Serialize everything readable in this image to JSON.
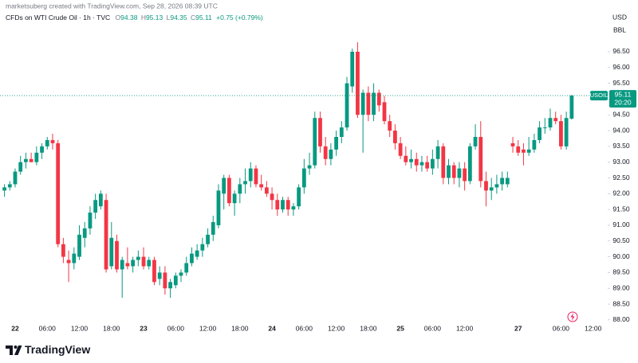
{
  "header": {
    "credit": "marketsuberg created with TradingView.com, Sep 28, 2026 08:39 UTC",
    "symbol": "CFDs on WTI Crude Oil · 1h · TVC",
    "ohlc_labels": [
      "O",
      "H",
      "L",
      "C"
    ],
    "change": "+0.75 (+0.79%)"
  },
  "footer": {
    "brand": "TradingView"
  },
  "chart_data": {
    "type": "candlestick",
    "symbol_label": "USOIL",
    "countdown": "20:20",
    "units": [
      "USD",
      "BBL"
    ],
    "up_color": "#089981",
    "down_color": "#f23645",
    "grid": false,
    "categories": [
      null,
      null,
      "22",
      null,
      null,
      null,
      null,
      null,
      "06:00",
      null,
      null,
      null,
      null,
      null,
      "12:00",
      null,
      null,
      null,
      null,
      null,
      "18:00",
      null,
      null,
      null,
      null,
      null,
      "23",
      null,
      null,
      null,
      null,
      null,
      "06:00",
      null,
      null,
      null,
      null,
      null,
      "12:00",
      null,
      null,
      null,
      null,
      null,
      "18:00",
      null,
      null,
      null,
      null,
      null,
      "24",
      null,
      null,
      null,
      null,
      null,
      "06:00",
      null,
      null,
      null,
      null,
      null,
      "12:00",
      null,
      null,
      null,
      null,
      null,
      "18:00",
      null,
      null,
      null,
      null,
      null,
      "25",
      null,
      null,
      null,
      null,
      null,
      "06:00",
      null,
      null,
      null,
      null,
      null,
      "12:00",
      null,
      null,
      null,
      null,
      null,
      null,
      null,
      null,
      null,
      "27",
      null,
      null,
      null,
      null,
      null,
      null,
      null,
      "06:00",
      null,
      null,
      null,
      null,
      null,
      "12:00"
    ],
    "open": [
      92.1,
      92.2,
      92.3,
      92.7,
      93.0,
      93.1,
      93.0,
      93.3,
      93.5,
      93.7,
      93.6,
      90.4,
      89.9,
      89.8,
      90.0,
      90.6,
      90.9,
      91.4,
      91.6,
      91.8,
      89.7,
      90.5,
      89.6,
      89.8,
      89.7,
      89.9,
      90.0,
      89.7,
      89.9,
      89.3,
      89.5,
      89.0,
      89.1,
      89.4,
      89.5,
      89.8,
      90.0,
      90.2,
      90.4,
      90.7,
      91.0,
      92.0,
      92.5,
      91.7,
      92.0,
      92.3,
      92.4,
      92.8,
      92.3,
      92.2,
      92.0,
      91.8,
      91.5,
      91.8,
      91.5,
      91.6,
      92.2,
      92.8,
      92.9,
      94.4,
      93.5,
      93.1,
      93.4,
      93.8,
      94.1,
      95.4,
      96.5,
      94.5,
      95.2,
      94.5,
      95.2,
      94.9,
      94.3,
      94.0,
      93.6,
      93.2,
      93.0,
      93.1,
      92.9,
      93.0,
      92.8,
      93.1,
      93.5,
      92.5,
      92.9,
      92.5,
      92.8,
      92.4,
      93.5,
      93.8,
      92.4,
      92.1,
      92.2,
      92.3,
      92.3,
      93.6,
      93.5,
      93.4,
      93.3,
      93.4,
      93.7,
      94.1,
      94.1,
      94.4,
      94.3,
      93.5,
      94.38,
      null,
      null,
      null,
      null
    ],
    "high": [
      92.3,
      92.4,
      92.8,
      93.2,
      93.3,
      93.3,
      93.5,
      93.6,
      93.8,
      93.9,
      93.7,
      90.6,
      90.2,
      90.3,
      91.0,
      91.1,
      91.6,
      92.0,
      92.1,
      92.0,
      91.1,
      90.7,
      90.0,
      90.3,
      90.0,
      90.2,
      90.3,
      90.0,
      90.0,
      89.7,
      89.7,
      89.3,
      89.5,
      89.6,
      90.0,
      90.3,
      90.4,
      90.6,
      90.9,
      91.3,
      92.3,
      92.6,
      92.6,
      92.1,
      92.5,
      92.8,
      93.0,
      92.9,
      92.6,
      92.4,
      92.2,
      92.0,
      91.9,
      91.9,
      91.7,
      92.3,
      93.1,
      93.3,
      94.6,
      94.6,
      93.8,
      93.6,
      94.0,
      94.3,
      95.7,
      96.6,
      96.8,
      95.3,
      95.4,
      95.5,
      95.3,
      95.1,
      94.5,
      94.2,
      93.8,
      93.5,
      93.4,
      93.3,
      93.2,
      93.2,
      93.4,
      93.7,
      93.6,
      93.1,
      93.0,
      93.0,
      93.0,
      93.6,
      94.2,
      94.3,
      92.7,
      92.5,
      92.6,
      92.7,
      92.7,
      93.8,
      93.7,
      93.6,
      93.8,
      93.9,
      94.3,
      94.4,
      94.7,
      94.6,
      94.5,
      94.6,
      95.13,
      null,
      null,
      null,
      null
    ],
    "low": [
      91.9,
      92.1,
      92.2,
      92.6,
      92.8,
      93.0,
      92.9,
      93.1,
      93.4,
      93.4,
      90.3,
      89.8,
      89.2,
      89.6,
      89.9,
      90.3,
      90.7,
      91.2,
      91.5,
      89.5,
      89.6,
      89.5,
      88.7,
      89.6,
      89.5,
      89.7,
      89.6,
      89.6,
      89.1,
      89.1,
      88.8,
      88.7,
      89.0,
      89.2,
      89.4,
      89.7,
      89.9,
      90.0,
      90.3,
      90.5,
      90.9,
      91.5,
      91.6,
      91.3,
      91.7,
      92.0,
      92.2,
      92.2,
      92.1,
      91.9,
      91.5,
      91.3,
      91.4,
      91.3,
      91.3,
      91.5,
      92.0,
      92.6,
      92.8,
      93.3,
      92.9,
      92.9,
      93.2,
      93.6,
      94.0,
      95.2,
      94.4,
      93.3,
      94.3,
      94.3,
      94.6,
      94.2,
      93.8,
      93.4,
      93.1,
      92.9,
      92.8,
      92.7,
      92.7,
      92.7,
      92.6,
      92.8,
      92.3,
      92.3,
      92.3,
      92.2,
      92.1,
      92.3,
      93.4,
      92.2,
      91.6,
      91.8,
      92.0,
      92.1,
      92.2,
      93.3,
      93.2,
      92.9,
      93.2,
      93.3,
      93.6,
      93.9,
      94.0,
      94.2,
      93.4,
      93.4,
      94.35,
      null,
      null,
      null,
      null
    ],
    "close": [
      92.2,
      92.3,
      92.7,
      93.0,
      93.1,
      93.0,
      93.3,
      93.5,
      93.7,
      93.6,
      90.4,
      90.0,
      89.8,
      90.1,
      90.7,
      90.9,
      91.4,
      91.8,
      92.0,
      89.6,
      90.6,
      89.6,
      89.9,
      89.7,
      89.9,
      90.0,
      89.7,
      89.9,
      89.2,
      89.5,
      89.0,
      89.2,
      89.4,
      89.5,
      89.8,
      90.1,
      90.2,
      90.4,
      90.7,
      91.1,
      92.1,
      92.5,
      91.7,
      92.0,
      92.3,
      92.4,
      92.8,
      92.3,
      92.2,
      92.0,
      91.8,
      91.5,
      91.8,
      91.5,
      91.6,
      92.2,
      92.8,
      92.9,
      94.4,
      93.5,
      93.1,
      93.4,
      93.8,
      94.1,
      95.5,
      96.5,
      94.5,
      95.2,
      94.5,
      95.2,
      94.8,
      94.3,
      94.0,
      93.6,
      93.2,
      93.0,
      93.1,
      92.9,
      93.0,
      92.8,
      93.1,
      93.5,
      92.5,
      92.9,
      92.5,
      92.8,
      92.4,
      93.5,
      93.8,
      92.4,
      92.1,
      92.2,
      92.3,
      92.5,
      92.5,
      93.5,
      93.3,
      93.3,
      93.4,
      93.7,
      94.1,
      94.1,
      94.4,
      94.3,
      93.5,
      94.4,
      95.11,
      null,
      null,
      null,
      null
    ],
    "ylim": [
      87.92,
      98.14
    ],
    "yticks": [
      {
        "value": 88,
        "label": "88.00"
      },
      {
        "value": 88.5,
        "label": "88.50"
      },
      {
        "value": 89,
        "label": "89.00"
      },
      {
        "value": 89.5,
        "label": "89.50"
      },
      {
        "value": 90,
        "label": "90.00"
      },
      {
        "value": 90.5,
        "label": "90.50"
      },
      {
        "value": 91,
        "label": "91.00"
      },
      {
        "value": 91.5,
        "label": "91.50"
      },
      {
        "value": 92,
        "label": "92.00"
      },
      {
        "value": 92.5,
        "label": "92.50"
      },
      {
        "value": 93,
        "label": "93.00"
      },
      {
        "value": 93.5,
        "label": "93.50"
      },
      {
        "value": 94,
        "label": "94.00"
      },
      {
        "value": 94.5,
        "label": "94.50"
      },
      {
        "value": 95,
        "label": "95.00"
      },
      {
        "value": 95.5,
        "label": "95.50"
      },
      {
        "value": 96,
        "label": "96.00"
      },
      {
        "value": 96.5,
        "label": "96.50"
      }
    ]
  }
}
